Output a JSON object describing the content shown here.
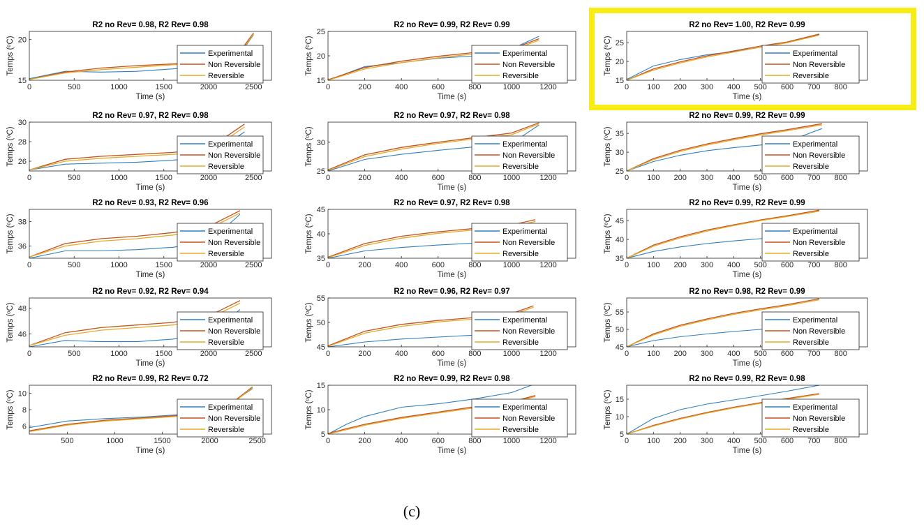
{
  "caption": "(c)",
  "series_names": [
    "Experimental",
    "Non Reversible",
    "Reversible"
  ],
  "colors": {
    "experimental": "#2f7fc0",
    "non_reversible": "#c8511c",
    "reversible": "#e3ab2a",
    "highlight": "#f7ec14",
    "axis": "#262626"
  },
  "chart_data": [
    {
      "type": "line",
      "title": "R2 no Rev= 0.98, R2 Rev= 0.98",
      "xlabel": "Time (s)",
      "ylabel": "Temps (ºC)",
      "xlim": [
        0,
        2700
      ],
      "ylim": [
        15,
        21
      ],
      "xticks": [
        0,
        500,
        1000,
        1500,
        2000,
        2500
      ],
      "yticks": [
        15,
        20
      ],
      "x": [
        0,
        400,
        800,
        1200,
        1600,
        2000,
        2400,
        2500
      ],
      "series": [
        {
          "name": "Experimental",
          "values": [
            15.2,
            16.1,
            16.0,
            16.1,
            16.4,
            16.8,
            19.0,
            20.6
          ]
        },
        {
          "name": "Non Reversible",
          "values": [
            15.1,
            16.0,
            16.5,
            16.8,
            17.0,
            17.4,
            19.3,
            20.8
          ]
        },
        {
          "name": "Reversible",
          "values": [
            15.1,
            15.9,
            16.3,
            16.6,
            16.9,
            17.2,
            19.1,
            20.7
          ]
        }
      ]
    },
    {
      "type": "line",
      "title": "R2 no Rev= 0.99, R2 Rev= 0.99",
      "xlabel": "Time (s)",
      "ylabel": "Temps (ºC)",
      "xlim": [
        0,
        1350
      ],
      "ylim": [
        15,
        25
      ],
      "xticks": [
        0,
        200,
        400,
        600,
        800,
        1000,
        1200
      ],
      "yticks": [
        15,
        20,
        25
      ],
      "x": [
        0,
        200,
        400,
        600,
        800,
        1000,
        1150
      ],
      "series": [
        {
          "name": "Experimental",
          "values": [
            15.0,
            17.8,
            18.6,
            19.5,
            20.0,
            21.4,
            24.0
          ]
        },
        {
          "name": "Non Reversible",
          "values": [
            15.1,
            17.6,
            18.9,
            19.9,
            20.7,
            21.4,
            23.5
          ]
        },
        {
          "name": "Reversible",
          "values": [
            15.0,
            17.3,
            18.6,
            19.6,
            20.4,
            21.1,
            23.2
          ]
        }
      ]
    },
    {
      "type": "line",
      "title": "R2 no Rev= 1.00, R2 Rev= 0.99",
      "xlabel": "Time (s)",
      "ylabel": "Temps (ºC)",
      "xlim": [
        0,
        900
      ],
      "ylim": [
        15,
        28
      ],
      "xticks": [
        0,
        100,
        200,
        300,
        400,
        500,
        600,
        700,
        800
      ],
      "yticks": [
        15,
        20,
        25
      ],
      "x": [
        0,
        100,
        200,
        300,
        400,
        500,
        600,
        720
      ],
      "series": [
        {
          "name": "Experimental",
          "values": [
            15.2,
            18.8,
            20.5,
            21.8,
            22.6,
            23.8,
            25.0,
            27.1
          ]
        },
        {
          "name": "Non Reversible",
          "values": [
            15.0,
            18.0,
            19.9,
            21.5,
            22.8,
            24.1,
            25.2,
            27.3
          ]
        },
        {
          "name": "Reversible",
          "values": [
            15.0,
            17.7,
            19.6,
            21.2,
            22.5,
            23.8,
            25.0,
            27.0
          ]
        }
      ]
    },
    {
      "type": "line",
      "title": "R2 no Rev= 0.97, R2 Rev= 0.98",
      "xlabel": "Time (s)",
      "ylabel": "Temps (ºC)",
      "xlim": [
        0,
        2700
      ],
      "ylim": [
        25,
        30
      ],
      "xticks": [
        0,
        500,
        1000,
        1500,
        2000,
        2500
      ],
      "yticks": [
        26,
        28,
        30
      ],
      "x": [
        0,
        400,
        800,
        1200,
        1600,
        2000,
        2400
      ],
      "series": [
        {
          "name": "Experimental",
          "values": [
            25.1,
            25.7,
            25.8,
            25.9,
            26.1,
            26.5,
            29.0
          ]
        },
        {
          "name": "Non Reversible",
          "values": [
            25.1,
            26.2,
            26.5,
            26.7,
            26.9,
            27.3,
            29.8
          ]
        },
        {
          "name": "Reversible",
          "values": [
            25.1,
            26.0,
            26.3,
            26.5,
            26.7,
            27.0,
            29.5
          ]
        }
      ]
    },
    {
      "type": "line",
      "title": "R2 no Rev= 0.97, R2 Rev= 0.98",
      "xlabel": "Time (s)",
      "ylabel": "Temps (ºC)",
      "xlim": [
        0,
        1350
      ],
      "ylim": [
        25,
        33.5
      ],
      "xticks": [
        0,
        200,
        400,
        600,
        800,
        1000,
        1200
      ],
      "yticks": [
        25,
        30
      ],
      "x": [
        0,
        200,
        400,
        600,
        800,
        1000,
        1150
      ],
      "series": [
        {
          "name": "Experimental",
          "values": [
            25.0,
            27.0,
            27.9,
            28.6,
            29.2,
            29.8,
            33.0
          ]
        },
        {
          "name": "Non Reversible",
          "values": [
            25.2,
            27.8,
            29.1,
            30.0,
            30.8,
            31.6,
            33.4
          ]
        },
        {
          "name": "Reversible",
          "values": [
            25.1,
            27.5,
            28.8,
            29.8,
            30.6,
            31.3,
            33.2
          ]
        }
      ]
    },
    {
      "type": "line",
      "title": "R2 no Rev= 0.99, R2 Rev= 0.99",
      "xlabel": "Time (s)",
      "ylabel": "Temps (ºC)",
      "xlim": [
        0,
        900
      ],
      "ylim": [
        25,
        38
      ],
      "xticks": [
        0,
        100,
        200,
        300,
        400,
        500,
        600,
        700,
        800
      ],
      "yticks": [
        25,
        30,
        35
      ],
      "x": [
        0,
        100,
        200,
        300,
        400,
        500,
        600,
        730
      ],
      "series": [
        {
          "name": "Experimental",
          "values": [
            25.0,
            27.5,
            29.2,
            30.4,
            31.2,
            31.9,
            32.8,
            36.3
          ]
        },
        {
          "name": "Non Reversible",
          "values": [
            25.0,
            28.3,
            30.5,
            32.2,
            33.6,
            34.9,
            36.0,
            37.6
          ]
        },
        {
          "name": "Reversible",
          "values": [
            25.0,
            28.0,
            30.2,
            31.9,
            33.3,
            34.6,
            35.7,
            37.3
          ]
        }
      ]
    },
    {
      "type": "line",
      "title": "R2 no Rev= 0.93, R2 Rev= 0.96",
      "xlabel": "Time (s)",
      "ylabel": "Temps (ºC)",
      "xlim": [
        0,
        2700
      ],
      "ylim": [
        35,
        39
      ],
      "xticks": [
        0,
        500,
        1000,
        1500,
        2000,
        2500
      ],
      "yticks": [
        36,
        38
      ],
      "x": [
        0,
        400,
        800,
        1200,
        1600,
        2000,
        2350
      ],
      "series": [
        {
          "name": "Experimental",
          "values": [
            35.0,
            35.6,
            35.6,
            35.7,
            35.9,
            36.3,
            38.6
          ]
        },
        {
          "name": "Non Reversible",
          "values": [
            35.1,
            36.2,
            36.6,
            36.8,
            37.1,
            37.6,
            38.9
          ]
        },
        {
          "name": "Reversible",
          "values": [
            35.1,
            36.0,
            36.4,
            36.6,
            36.9,
            37.4,
            38.7
          ]
        }
      ]
    },
    {
      "type": "line",
      "title": "R2 no Rev= 0.97, R2 Rev= 0.98",
      "xlabel": "Time (s)",
      "ylabel": "Temps (ºC)",
      "xlim": [
        0,
        1350
      ],
      "ylim": [
        35,
        45
      ],
      "xticks": [
        0,
        200,
        400,
        600,
        800,
        1000,
        1200
      ],
      "yticks": [
        35,
        40,
        45
      ],
      "x": [
        0,
        200,
        400,
        600,
        800,
        1000,
        1130
      ],
      "series": [
        {
          "name": "Experimental",
          "values": [
            35.0,
            36.5,
            37.2,
            37.7,
            38.1,
            38.6,
            39.5
          ]
        },
        {
          "name": "Non Reversible",
          "values": [
            35.2,
            38.0,
            39.5,
            40.4,
            41.1,
            41.8,
            42.9
          ]
        },
        {
          "name": "Reversible",
          "values": [
            35.1,
            37.6,
            39.1,
            40.1,
            40.8,
            41.5,
            42.5
          ]
        }
      ]
    },
    {
      "type": "line",
      "title": "R2 no Rev= 0.99, R2 Rev= 0.99",
      "xlabel": "Time (s)",
      "ylabel": "Temps (ºC)",
      "xlim": [
        0,
        900
      ],
      "ylim": [
        35,
        48
      ],
      "xticks": [
        0,
        100,
        200,
        300,
        400,
        500,
        600,
        700,
        800
      ],
      "yticks": [
        35,
        40,
        45
      ],
      "x": [
        0,
        100,
        200,
        300,
        400,
        500,
        600,
        720
      ],
      "series": [
        {
          "name": "Experimental",
          "values": [
            35.0,
            36.8,
            38.0,
            38.9,
            39.6,
            40.2,
            40.7,
            41.3
          ]
        },
        {
          "name": "Non Reversible",
          "values": [
            35.0,
            38.5,
            40.7,
            42.5,
            43.9,
            45.2,
            46.3,
            47.8
          ]
        },
        {
          "name": "Reversible",
          "values": [
            35.0,
            38.2,
            40.4,
            42.2,
            43.7,
            45.0,
            46.1,
            47.5
          ]
        }
      ]
    },
    {
      "type": "line",
      "title": "R2 no Rev= 0.92, R2 Rev= 0.94",
      "xlabel": "Time (s)",
      "ylabel": "Temps (ºC)",
      "xlim": [
        0,
        2700
      ],
      "ylim": [
        45,
        48.8
      ],
      "xticks": [
        0,
        500,
        1000,
        1500,
        2000,
        2500
      ],
      "yticks": [
        46,
        48
      ],
      "x": [
        0,
        400,
        800,
        1200,
        1600,
        2000,
        2350
      ],
      "series": [
        {
          "name": "Experimental",
          "values": [
            45.0,
            45.5,
            45.4,
            45.4,
            45.6,
            46.0,
            47.9
          ]
        },
        {
          "name": "Non Reversible",
          "values": [
            45.1,
            46.1,
            46.5,
            46.7,
            46.9,
            47.4,
            48.6
          ]
        },
        {
          "name": "Reversible",
          "values": [
            45.1,
            45.9,
            46.3,
            46.5,
            46.7,
            47.2,
            48.4
          ]
        }
      ]
    },
    {
      "type": "line",
      "title": "R2 no Rev= 0.96, R2 Rev= 0.97",
      "xlabel": "Time (s)",
      "ylabel": "Temps (ºC)",
      "xlim": [
        0,
        1350
      ],
      "ylim": [
        45,
        55
      ],
      "xticks": [
        0,
        200,
        400,
        600,
        800,
        1000,
        1200
      ],
      "yticks": [
        45,
        50,
        55
      ],
      "x": [
        0,
        200,
        400,
        600,
        800,
        1000,
        1120
      ],
      "series": [
        {
          "name": "Experimental",
          "values": [
            45.0,
            46.0,
            46.6,
            47.0,
            47.4,
            47.9,
            48.3
          ]
        },
        {
          "name": "Non Reversible",
          "values": [
            45.2,
            48.2,
            49.6,
            50.4,
            51.0,
            51.8,
            53.4
          ]
        },
        {
          "name": "Reversible",
          "values": [
            45.1,
            47.8,
            49.2,
            50.1,
            50.7,
            51.5,
            53.1
          ]
        }
      ]
    },
    {
      "type": "line",
      "title": "R2 no Rev= 0.98, R2 Rev= 0.99",
      "xlabel": "Time (s)",
      "ylabel": "Temps (ºC)",
      "xlim": [
        0,
        900
      ],
      "ylim": [
        45,
        59
      ],
      "xticks": [
        0,
        100,
        200,
        300,
        400,
        500,
        600,
        700,
        800
      ],
      "yticks": [
        45,
        50,
        55
      ],
      "x": [
        0,
        100,
        200,
        300,
        400,
        500,
        600,
        720
      ],
      "series": [
        {
          "name": "Experimental",
          "values": [
            45.0,
            46.8,
            47.9,
            48.7,
            49.4,
            50.0,
            50.6,
            51.3
          ]
        },
        {
          "name": "Non Reversible",
          "values": [
            45.0,
            48.7,
            51.2,
            53.0,
            54.6,
            55.9,
            57.1,
            58.8
          ]
        },
        {
          "name": "Reversible",
          "values": [
            45.0,
            48.4,
            50.9,
            52.7,
            54.3,
            55.6,
            56.8,
            58.5
          ]
        }
      ]
    },
    {
      "type": "line",
      "title": "R2 no Rev= 0.99, R2 Rev= 0.72",
      "xlabel": "Time (s)",
      "ylabel": "Temps (ºC)",
      "xlim": [
        100,
        2650
      ],
      "ylim": [
        5,
        11
      ],
      "xticks": [
        500,
        1000,
        1500,
        2000,
        2500
      ],
      "yticks": [
        6,
        8,
        10
      ],
      "x": [
        100,
        500,
        900,
        1300,
        1700,
        2100,
        2450
      ],
      "series": [
        {
          "name": "Experimental",
          "values": [
            5.8,
            6.6,
            6.9,
            7.1,
            7.4,
            7.7,
            10.6
          ]
        },
        {
          "name": "Non Reversible",
          "values": [
            5.4,
            6.2,
            6.7,
            7.0,
            7.3,
            7.6,
            10.8
          ]
        },
        {
          "name": "Reversible",
          "values": [
            5.3,
            6.1,
            6.6,
            6.9,
            7.2,
            7.5,
            10.7
          ]
        }
      ]
    },
    {
      "type": "line",
      "title": "R2 no Rev= 0.99, R2 Rev= 0.98",
      "xlabel": "Time (s)",
      "ylabel": "Temps (ºC)",
      "xlim": [
        0,
        1350
      ],
      "ylim": [
        5,
        15
      ],
      "xticks": [
        0,
        200,
        400,
        600,
        800,
        1000,
        1200
      ],
      "yticks": [
        5,
        10,
        15
      ],
      "x": [
        0,
        100,
        200,
        400,
        600,
        800,
        1000,
        1130
      ],
      "series": [
        {
          "name": "Experimental",
          "values": [
            5.0,
            7.0,
            8.6,
            10.5,
            11.2,
            12.2,
            13.5,
            15.3
          ]
        },
        {
          "name": "Non Reversible",
          "values": [
            5.1,
            6.1,
            7.0,
            8.4,
            9.5,
            10.6,
            11.6,
            12.9
          ]
        },
        {
          "name": "Reversible",
          "values": [
            5.0,
            5.9,
            6.8,
            8.2,
            9.3,
            10.4,
            11.4,
            12.7
          ]
        }
      ]
    },
    {
      "type": "line",
      "title": "R2 no Rev= 0.99, R2 Rev= 0.98",
      "xlabel": "Time (s)",
      "ylabel": "Temps (ºC)",
      "xlim": [
        0,
        900
      ],
      "ylim": [
        5,
        19
      ],
      "xticks": [
        0,
        100,
        200,
        300,
        400,
        500,
        600,
        700,
        800
      ],
      "yticks": [
        5,
        10,
        15
      ],
      "x": [
        0,
        100,
        200,
        300,
        400,
        500,
        600,
        720
      ],
      "series": [
        {
          "name": "Experimental",
          "values": [
            5.0,
            9.5,
            12.0,
            13.6,
            14.8,
            16.0,
            17.3,
            19.0
          ]
        },
        {
          "name": "Non Reversible",
          "values": [
            5.0,
            7.5,
            9.5,
            11.2,
            12.7,
            14.0,
            15.2,
            16.6
          ]
        },
        {
          "name": "Reversible",
          "values": [
            5.0,
            7.3,
            9.3,
            11.0,
            12.5,
            13.8,
            15.0,
            16.4
          ]
        }
      ]
    }
  ]
}
